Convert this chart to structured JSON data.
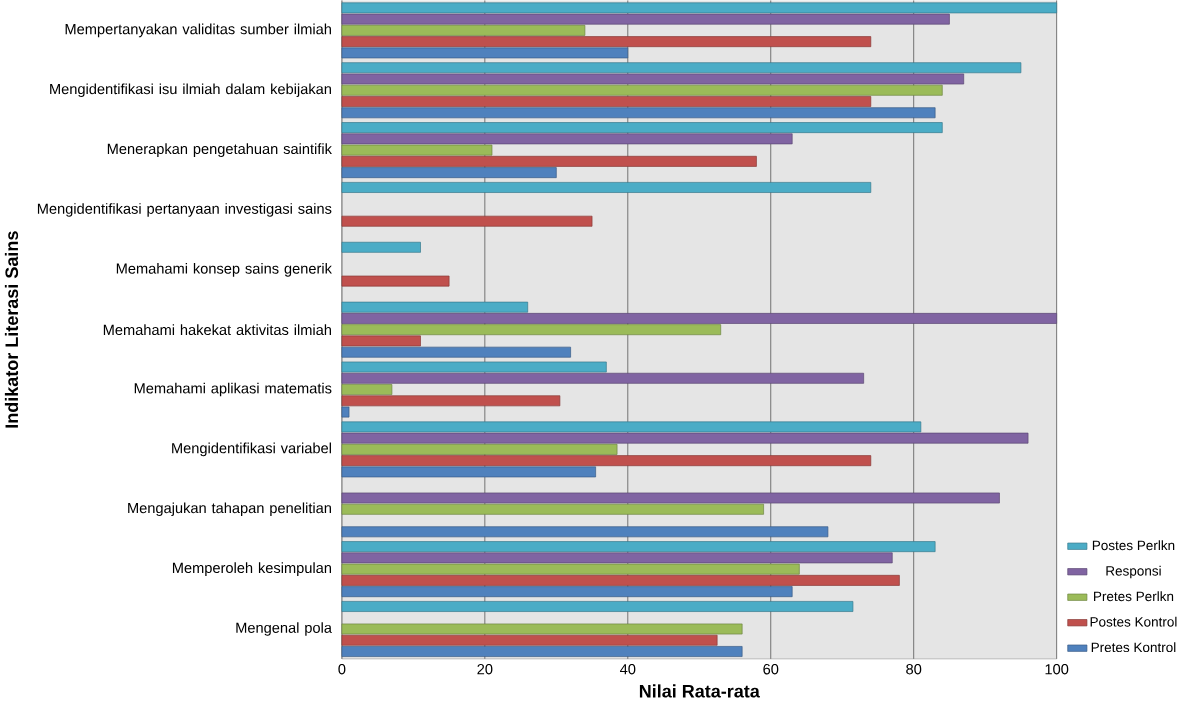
{
  "chart_data": {
    "type": "bar",
    "orientation": "horizontal",
    "xlabel": "Nilai Rata-rata",
    "ylabel": "Indikator Literasi Sains",
    "categories": [
      "Mempertanyakan validitas sumber ilmiah",
      "Mengidentifikasi isu ilmiah dalam kebijakan",
      "Menerapkan pengetahuan saintifik",
      "Mengidentifikasi pertanyaan investigasi sains",
      "Memahami konsep sains generik",
      "Memahami hakekat aktivitas ilmiah",
      "Memahami aplikasi matematis",
      "Mengidentifikasi variabel",
      "Mengajukan tahapan penelitian",
      "Memperoleh kesimpulan",
      "Mengenal pola"
    ],
    "series": [
      {
        "name": "Postes Perlkn",
        "color": "#4bacc6",
        "values": [
          100,
          95,
          84,
          74,
          11,
          26,
          37,
          81,
          null,
          83,
          71.5
        ]
      },
      {
        "name": "Responsi",
        "color": "#8064a2",
        "values": [
          85,
          87,
          63,
          null,
          null,
          100,
          73,
          96,
          92,
          77,
          null
        ]
      },
      {
        "name": "Pretes Perlkn",
        "color": "#9bbb59",
        "values": [
          34,
          84,
          21,
          null,
          null,
          53,
          7,
          38.5,
          59,
          64,
          56
        ]
      },
      {
        "name": "Postes Kontrol",
        "color": "#c0504d",
        "values": [
          74,
          74,
          58,
          35,
          15,
          11,
          30.5,
          74,
          null,
          78,
          52.5
        ]
      },
      {
        "name": "Pretes Kontrol",
        "color": "#4f81bd",
        "values": [
          40,
          83,
          30,
          null,
          null,
          32,
          1,
          35.5,
          68,
          63,
          56
        ]
      }
    ],
    "xlim": [
      0,
      100
    ],
    "xticks": [
      0,
      20,
      40,
      60,
      80,
      100
    ],
    "grid": "x",
    "legend": "bottom right"
  }
}
